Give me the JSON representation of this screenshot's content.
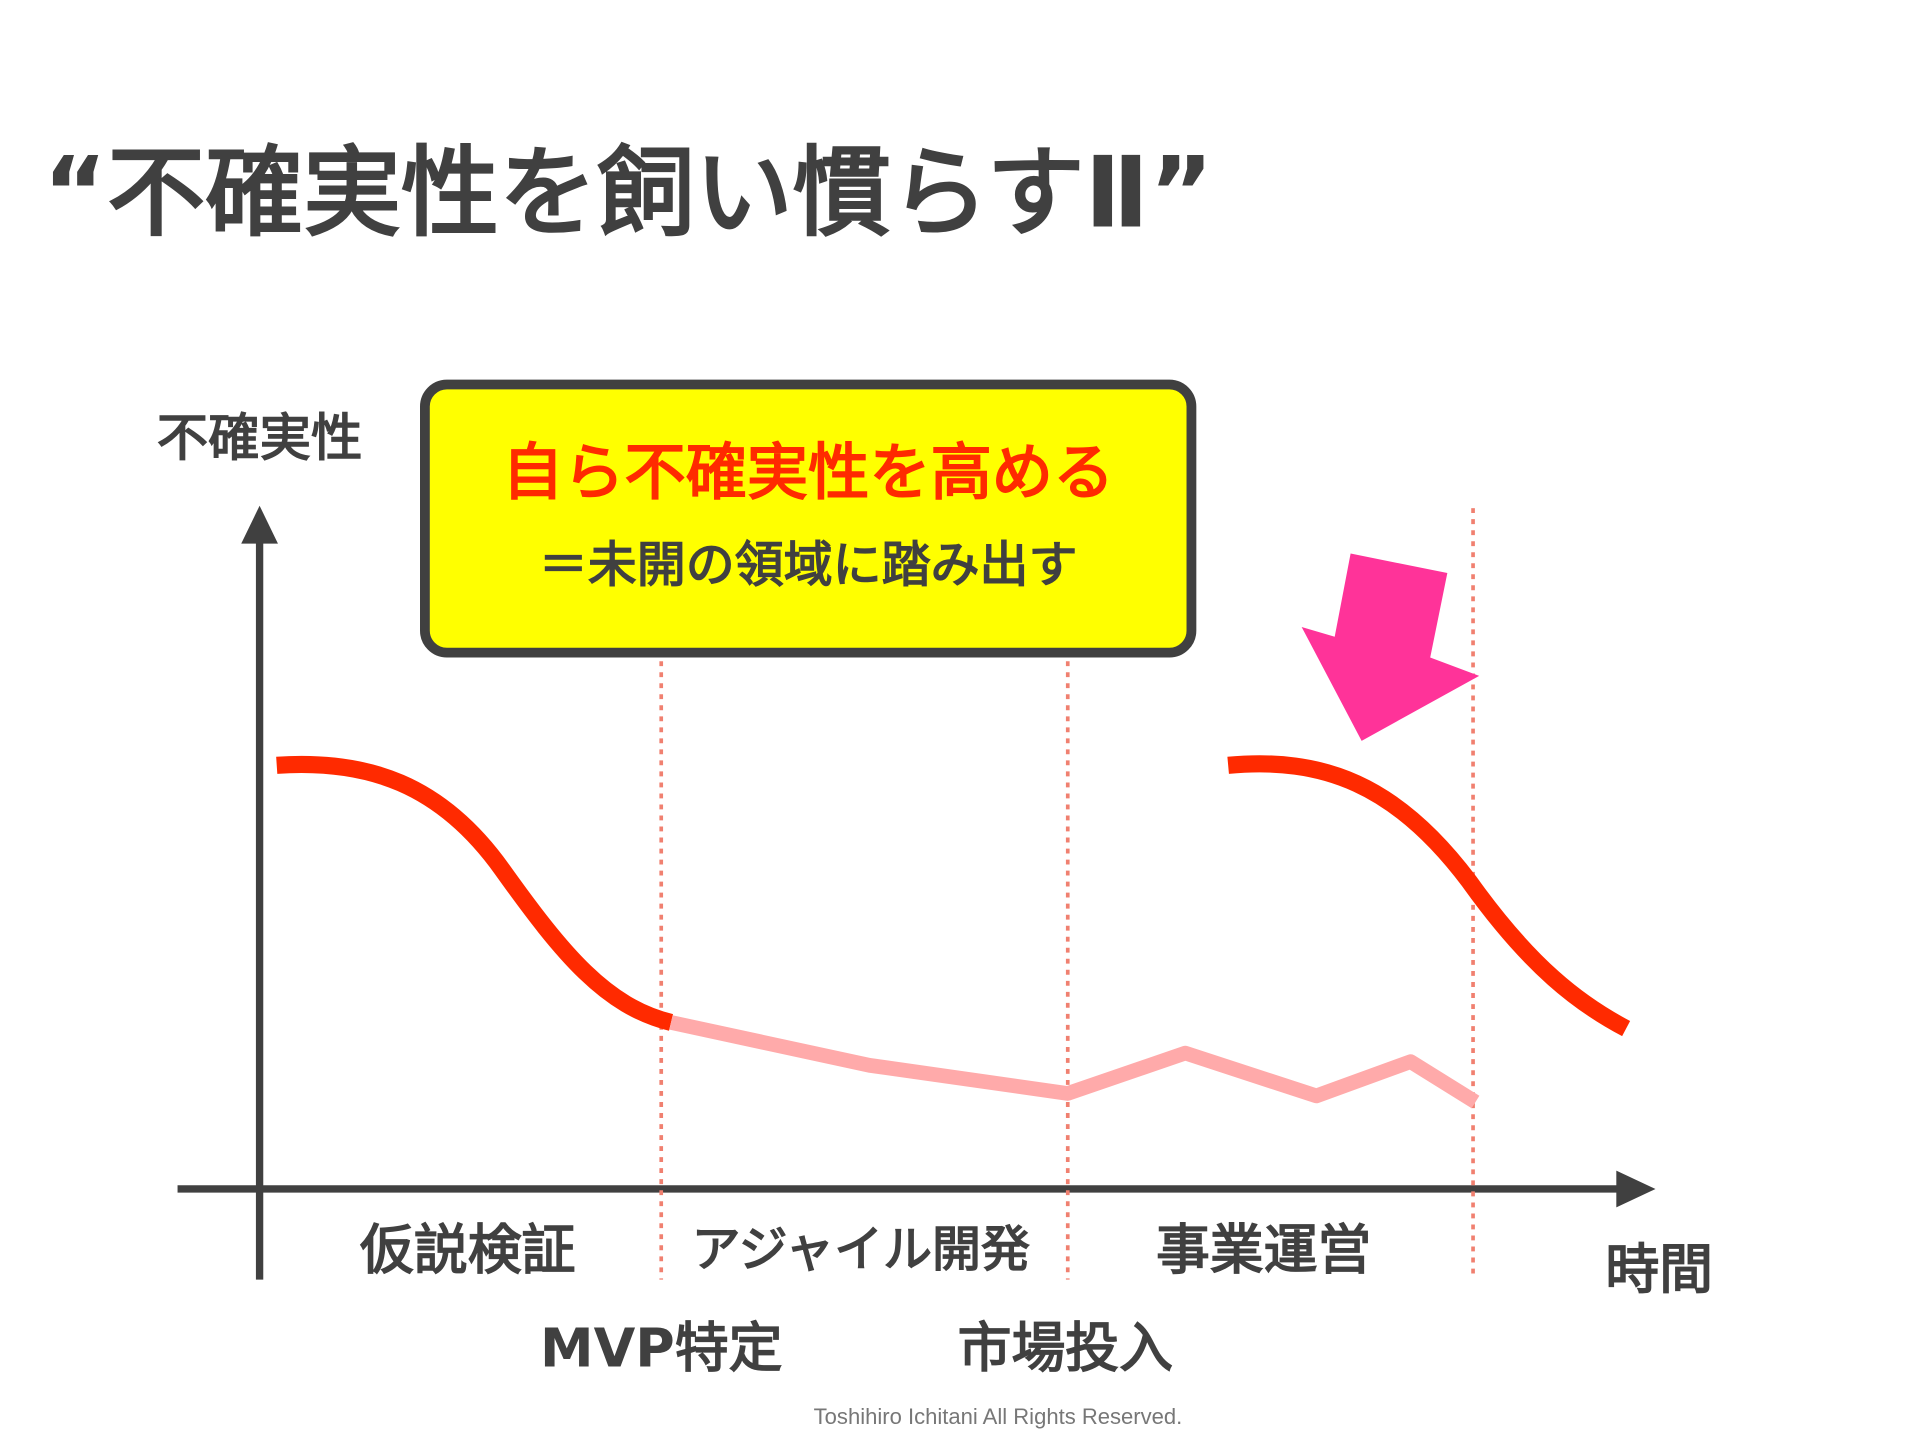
{
  "title": "“不確実性を飼い慣らすⅡ”",
  "callout": {
    "title": "自ら不確実性を高める",
    "subtitle": "＝未開の領域に踏み出す"
  },
  "axes": {
    "y_label": "不確実性",
    "x_label": "時間"
  },
  "phases": [
    "仮説検証",
    "アジャイル開発",
    "事業運営"
  ],
  "milestones": [
    "MVP特定",
    "市場投入"
  ],
  "footer": "Toshihiro Ichitani All Rights Reserved."
}
